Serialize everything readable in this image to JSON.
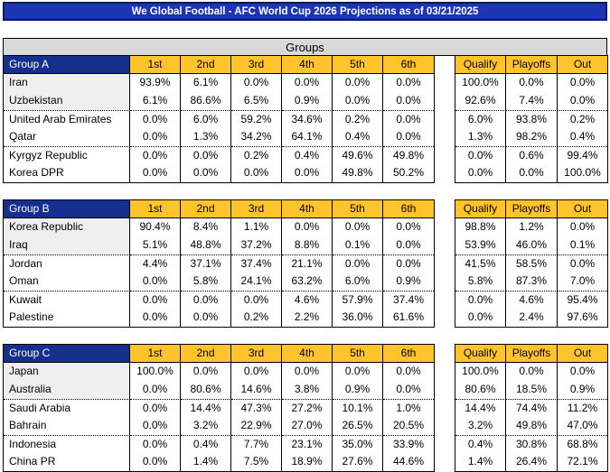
{
  "title": "We Global Football - AFC World Cup 2026 Projections as of 03/21/2025",
  "banner": "Groups",
  "position_headers": [
    "1st",
    "2nd",
    "3rd",
    "4th",
    "5th",
    "6th"
  ],
  "outcome_headers": [
    "Qualify",
    "Playoffs",
    "Out"
  ],
  "colors": {
    "title_blue": "#1c35b4",
    "title_border": "#0a1a52",
    "header_blue": "#152f8d",
    "gold": "#ffc42c",
    "banner_gray": "#d9d9d9",
    "highlight_gray": "#efefef"
  },
  "groups": [
    {
      "name": "Group A",
      "teams": [
        {
          "name": "Iran",
          "positions": [
            "93.9%",
            "6.1%",
            "0.0%",
            "0.0%",
            "0.0%",
            "0.0%"
          ],
          "outcomes": [
            "100.0%",
            "0.0%",
            "0.0%"
          ]
        },
        {
          "name": "Uzbekistan",
          "positions": [
            "6.1%",
            "86.6%",
            "6.5%",
            "0.9%",
            "0.0%",
            "0.0%"
          ],
          "outcomes": [
            "92.6%",
            "7.4%",
            "0.0%"
          ]
        },
        {
          "name": "United Arab Emirates",
          "positions": [
            "0.0%",
            "6.0%",
            "59.2%",
            "34.6%",
            "0.2%",
            "0.0%"
          ],
          "outcomes": [
            "6.0%",
            "93.8%",
            "0.2%"
          ]
        },
        {
          "name": "Qatar",
          "positions": [
            "0.0%",
            "1.3%",
            "34.2%",
            "64.1%",
            "0.4%",
            "0.0%"
          ],
          "outcomes": [
            "1.3%",
            "98.2%",
            "0.4%"
          ]
        },
        {
          "name": "Kyrgyz Republic",
          "positions": [
            "0.0%",
            "0.0%",
            "0.2%",
            "0.4%",
            "49.6%",
            "49.8%"
          ],
          "outcomes": [
            "0.0%",
            "0.6%",
            "99.4%"
          ]
        },
        {
          "name": "Korea DPR",
          "positions": [
            "0.0%",
            "0.0%",
            "0.0%",
            "0.0%",
            "49.8%",
            "50.2%"
          ],
          "outcomes": [
            "0.0%",
            "0.0%",
            "100.0%"
          ]
        }
      ]
    },
    {
      "name": "Group B",
      "teams": [
        {
          "name": "Korea Republic",
          "positions": [
            "90.4%",
            "8.4%",
            "1.1%",
            "0.0%",
            "0.0%",
            "0.0%"
          ],
          "outcomes": [
            "98.8%",
            "1.2%",
            "0.0%"
          ]
        },
        {
          "name": "Iraq",
          "positions": [
            "5.1%",
            "48.8%",
            "37.2%",
            "8.8%",
            "0.1%",
            "0.0%"
          ],
          "outcomes": [
            "53.9%",
            "46.0%",
            "0.1%"
          ]
        },
        {
          "name": "Jordan",
          "positions": [
            "4.4%",
            "37.1%",
            "37.4%",
            "21.1%",
            "0.0%",
            "0.0%"
          ],
          "outcomes": [
            "41.5%",
            "58.5%",
            "0.0%"
          ]
        },
        {
          "name": "Oman",
          "positions": [
            "0.0%",
            "5.8%",
            "24.1%",
            "63.2%",
            "6.0%",
            "0.9%"
          ],
          "outcomes": [
            "5.8%",
            "87.3%",
            "7.0%"
          ]
        },
        {
          "name": "Kuwait",
          "positions": [
            "0.0%",
            "0.0%",
            "0.0%",
            "4.6%",
            "57.9%",
            "37.4%"
          ],
          "outcomes": [
            "0.0%",
            "4.6%",
            "95.4%"
          ]
        },
        {
          "name": "Palestine",
          "positions": [
            "0.0%",
            "0.0%",
            "0.2%",
            "2.2%",
            "36.0%",
            "61.6%"
          ],
          "outcomes": [
            "0.0%",
            "2.4%",
            "97.6%"
          ]
        }
      ]
    },
    {
      "name": "Group C",
      "teams": [
        {
          "name": "Japan",
          "positions": [
            "100.0%",
            "0.0%",
            "0.0%",
            "0.0%",
            "0.0%",
            "0.0%"
          ],
          "outcomes": [
            "100.0%",
            "0.0%",
            "0.0%"
          ]
        },
        {
          "name": "Australia",
          "positions": [
            "0.0%",
            "80.6%",
            "14.6%",
            "3.8%",
            "0.9%",
            "0.0%"
          ],
          "outcomes": [
            "80.6%",
            "18.5%",
            "0.9%"
          ]
        },
        {
          "name": "Saudi Arabia",
          "positions": [
            "0.0%",
            "14.4%",
            "47.3%",
            "27.2%",
            "10.1%",
            "1.0%"
          ],
          "outcomes": [
            "14.4%",
            "74.4%",
            "11.2%"
          ]
        },
        {
          "name": "Bahrain",
          "positions": [
            "0.0%",
            "3.2%",
            "22.9%",
            "27.0%",
            "26.5%",
            "20.5%"
          ],
          "outcomes": [
            "3.2%",
            "49.8%",
            "47.0%"
          ]
        },
        {
          "name": "Indonesia",
          "positions": [
            "0.0%",
            "0.4%",
            "7.7%",
            "23.1%",
            "35.0%",
            "33.9%"
          ],
          "outcomes": [
            "0.4%",
            "30.8%",
            "68.8%"
          ]
        },
        {
          "name": "China PR",
          "positions": [
            "0.0%",
            "1.4%",
            "7.5%",
            "18.9%",
            "27.6%",
            "44.6%"
          ],
          "outcomes": [
            "1.4%",
            "26.4%",
            "72.1%"
          ]
        }
      ]
    }
  ]
}
